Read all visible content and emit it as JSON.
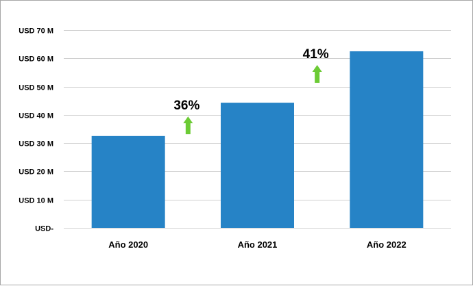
{
  "chart_data": {
    "type": "bar",
    "title": "",
    "xlabel": "",
    "ylabel": "",
    "categories": [
      "Año 2020",
      "Año 2021",
      "Año 2022"
    ],
    "values": [
      32.5,
      44.3,
      62.5
    ],
    "ylim": [
      0,
      70
    ],
    "yticks": [
      0,
      10,
      20,
      30,
      40,
      50,
      60,
      70
    ],
    "ytick_labels": [
      "USD-",
      "USD 10 M",
      "USD 20 M",
      "USD 30 M",
      "USD 40 M",
      "USD 50 M",
      "USD 60 M",
      "USD 70 M"
    ],
    "grid": true,
    "legend": "none",
    "bar_color": "#2683C6",
    "annotations": [
      {
        "text": "36%",
        "between": [
          "Año 2020",
          "Año 2021"
        ],
        "arrow": "up",
        "arrow_color": "#6CCB35"
      },
      {
        "text": "41%",
        "between": [
          "Año 2021",
          "Año 2022"
        ],
        "arrow": "up",
        "arrow_color": "#6CCB35"
      }
    ]
  }
}
